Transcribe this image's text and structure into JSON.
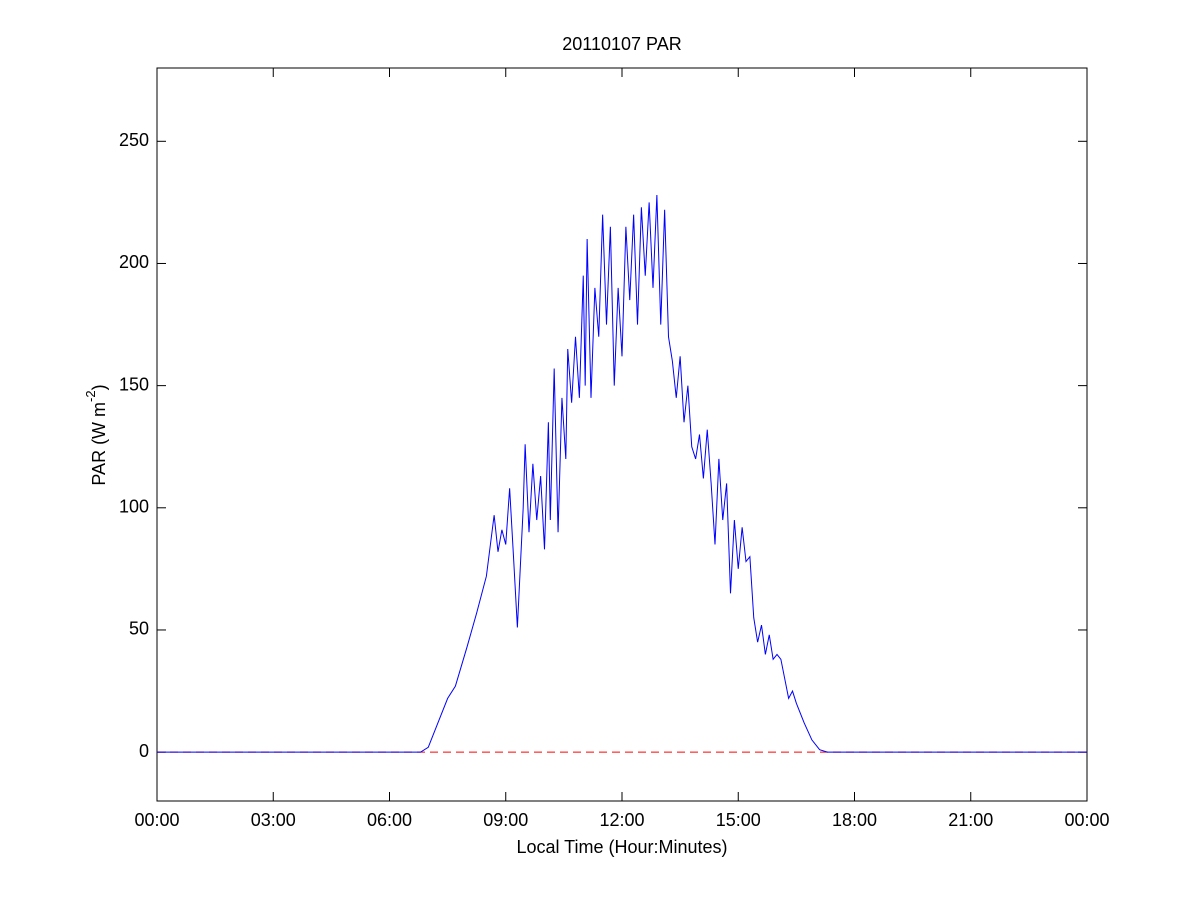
{
  "chart_data": {
    "type": "line",
    "title": "20110107 PAR",
    "xlabel": "Local Time (Hour:Minutes)",
    "ylabel": [
      "PAR (W m",
      "-2",
      ")"
    ],
    "x": [
      0,
      6.8,
      7.0,
      7.25,
      7.5,
      7.7,
      8.0,
      8.25,
      8.5,
      8.7,
      8.8,
      8.9,
      9.0,
      9.1,
      9.2,
      9.3,
      9.45,
      9.5,
      9.6,
      9.7,
      9.8,
      9.9,
      10.0,
      10.1,
      10.15,
      10.25,
      10.35,
      10.45,
      10.55,
      10.6,
      10.7,
      10.8,
      10.9,
      11.0,
      11.05,
      11.1,
      11.2,
      11.3,
      11.4,
      11.5,
      11.6,
      11.7,
      11.8,
      11.9,
      12.0,
      12.1,
      12.2,
      12.3,
      12.4,
      12.5,
      12.6,
      12.7,
      12.8,
      12.9,
      13.0,
      13.1,
      13.2,
      13.3,
      13.4,
      13.5,
      13.6,
      13.7,
      13.8,
      13.9,
      14.0,
      14.1,
      14.2,
      14.3,
      14.4,
      14.5,
      14.6,
      14.7,
      14.8,
      14.9,
      15.0,
      15.1,
      15.2,
      15.3,
      15.4,
      15.5,
      15.6,
      15.7,
      15.8,
      15.9,
      16.0,
      16.1,
      16.2,
      16.3,
      16.4,
      16.5,
      16.7,
      16.9,
      17.1,
      17.3,
      24
    ],
    "series": [
      {
        "name": "PAR",
        "color": "#0000ff",
        "values": [
          0,
          0,
          2,
          12,
          22,
          27,
          43,
          57,
          72,
          97,
          82,
          91,
          85,
          108,
          80,
          51,
          100,
          126,
          90,
          118,
          95,
          113,
          83,
          135,
          95,
          157,
          90,
          145,
          120,
          165,
          143,
          170,
          145,
          195,
          150,
          210,
          145,
          190,
          170,
          220,
          175,
          215,
          150,
          190,
          162,
          215,
          185,
          220,
          175,
          223,
          195,
          225,
          190,
          228,
          175,
          222,
          170,
          160,
          145,
          162,
          135,
          150,
          125,
          120,
          130,
          112,
          132,
          110,
          85,
          120,
          95,
          110,
          65,
          95,
          75,
          92,
          78,
          80,
          55,
          45,
          52,
          40,
          48,
          38,
          40,
          38,
          30,
          22,
          25,
          20,
          12,
          5,
          1,
          0,
          0
        ]
      }
    ],
    "hlines": [
      {
        "value": 0,
        "color": "#ff0000",
        "style": "dashed"
      }
    ],
    "xlim": [
      0,
      24
    ],
    "xticks": [
      {
        "value": 0,
        "label": "00:00"
      },
      {
        "value": 3,
        "label": "03:00"
      },
      {
        "value": 6,
        "label": "06:00"
      },
      {
        "value": 9,
        "label": "09:00"
      },
      {
        "value": 12,
        "label": "12:00"
      },
      {
        "value": 15,
        "label": "15:00"
      },
      {
        "value": 18,
        "label": "18:00"
      },
      {
        "value": 21,
        "label": "21:00"
      },
      {
        "value": 24,
        "label": "00:00"
      }
    ],
    "ylim": [
      -20,
      280
    ],
    "yticks": [
      0,
      50,
      100,
      150,
      200,
      250
    ]
  }
}
